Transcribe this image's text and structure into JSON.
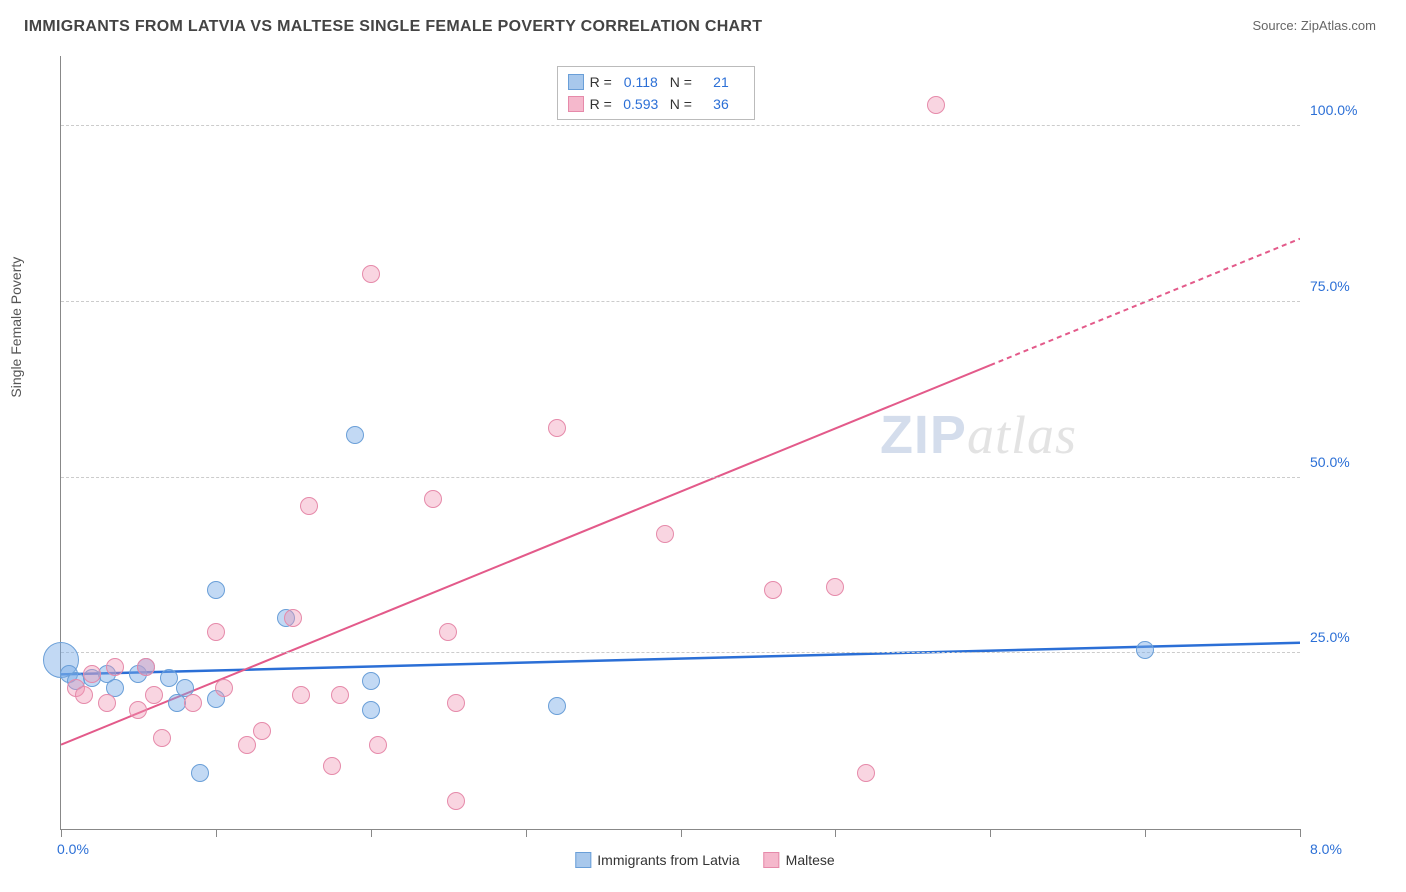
{
  "title": "IMMIGRANTS FROM LATVIA VS MALTESE SINGLE FEMALE POVERTY CORRELATION CHART",
  "source_prefix": "Source: ",
  "source_name": "ZipAtlas.com",
  "ylabel": "Single Female Poverty",
  "watermark_a": "ZIP",
  "watermark_b": "atlas",
  "chart": {
    "type": "scatter",
    "xlim": [
      0,
      8
    ],
    "ylim": [
      0,
      110
    ],
    "x_ticks": [
      0,
      1,
      2,
      3,
      4,
      5,
      6,
      7,
      8
    ],
    "x_tick_labels": {
      "0": "0.0%",
      "8": "8.0%"
    },
    "x_label_color": "#2b6fd6",
    "y_gridlines": [
      25,
      50,
      75,
      100
    ],
    "y_tick_labels": {
      "25": "25.0%",
      "50": "50.0%",
      "75": "75.0%",
      "100": "100.0%"
    },
    "y_label_color": "#2b6fd6",
    "grid_color": "#cccccc",
    "background_color": "#ffffff",
    "series": [
      {
        "name": "Immigrants from Latvia",
        "color_fill": "rgba(120,170,230,0.45)",
        "color_stroke": "#6a9fd8",
        "swatch_fill": "#a8c8ec",
        "swatch_border": "#6a9fd8",
        "r_value": "0.118",
        "n_value": "21",
        "marker_r": 9,
        "trend": {
          "y_at_x0": 22,
          "y_at_x8": 26.5,
          "color": "#2b6fd6",
          "width": 2.5
        },
        "points": [
          [
            0.05,
            22
          ],
          [
            0.1,
            21
          ],
          [
            0.2,
            21.5
          ],
          [
            0.3,
            22
          ],
          [
            0.35,
            20
          ],
          [
            0.5,
            22
          ],
          [
            0.55,
            23
          ],
          [
            0.7,
            21.5
          ],
          [
            0.75,
            18
          ],
          [
            0.8,
            20
          ],
          [
            0.9,
            8
          ],
          [
            1.0,
            34
          ],
          [
            1.0,
            18.5
          ],
          [
            1.45,
            30
          ],
          [
            1.9,
            56
          ],
          [
            2.0,
            21
          ],
          [
            2.0,
            17
          ],
          [
            3.2,
            17.5
          ],
          [
            7.0,
            25.5
          ]
        ],
        "big_points": [
          [
            0.0,
            24,
            18
          ]
        ]
      },
      {
        "name": "Maltese",
        "color_fill": "rgba(240,150,180,0.4)",
        "color_stroke": "#e68aaa",
        "swatch_fill": "#f5b8cc",
        "swatch_border": "#e68aaa",
        "r_value": "0.593",
        "n_value": "36",
        "marker_r": 9,
        "trend": {
          "y_at_x0": 12,
          "y_at_x8": 84,
          "color": "#e35a8a",
          "width": 2,
          "dash_from_x": 6.0
        },
        "points": [
          [
            0.1,
            20
          ],
          [
            0.15,
            19
          ],
          [
            0.2,
            22
          ],
          [
            0.3,
            18
          ],
          [
            0.35,
            23
          ],
          [
            0.5,
            17
          ],
          [
            0.55,
            23
          ],
          [
            0.6,
            19
          ],
          [
            0.65,
            13
          ],
          [
            0.85,
            18
          ],
          [
            1.0,
            28
          ],
          [
            1.05,
            20
          ],
          [
            1.2,
            12
          ],
          [
            1.3,
            14
          ],
          [
            1.5,
            30
          ],
          [
            1.55,
            19
          ],
          [
            1.6,
            46
          ],
          [
            1.75,
            9
          ],
          [
            1.8,
            19
          ],
          [
            2.0,
            79
          ],
          [
            2.05,
            12
          ],
          [
            2.4,
            47
          ],
          [
            2.5,
            28
          ],
          [
            2.55,
            4
          ],
          [
            2.55,
            18
          ],
          [
            3.2,
            57
          ],
          [
            3.9,
            42
          ],
          [
            4.6,
            34
          ],
          [
            5.0,
            34.5
          ],
          [
            5.65,
            103
          ],
          [
            5.2,
            8
          ]
        ]
      }
    ]
  },
  "legend_bottom": [
    {
      "label": "Immigrants from Latvia",
      "fill": "#a8c8ec",
      "border": "#6a9fd8"
    },
    {
      "label": "Maltese",
      "fill": "#f5b8cc",
      "border": "#e68aaa"
    }
  ]
}
